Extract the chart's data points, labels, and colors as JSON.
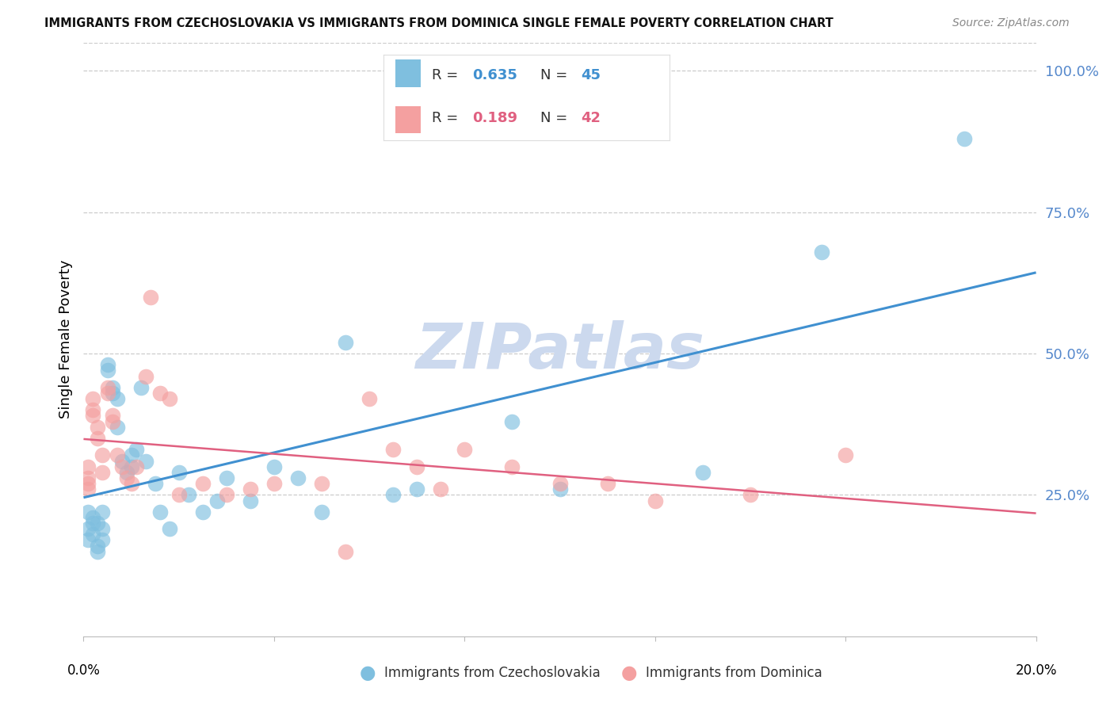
{
  "title": "IMMIGRANTS FROM CZECHOSLOVAKIA VS IMMIGRANTS FROM DOMINICA SINGLE FEMALE POVERTY CORRELATION CHART",
  "source": "Source: ZipAtlas.com",
  "ylabel": "Single Female Poverty",
  "xlim": [
    0.0,
    0.2
  ],
  "ylim": [
    0.0,
    1.05
  ],
  "yticks": [
    0.25,
    0.5,
    0.75,
    1.0
  ],
  "ytick_labels": [
    "25.0%",
    "50.0%",
    "75.0%",
    "100.0%"
  ],
  "xtick_positions": [
    0.0,
    0.04,
    0.08,
    0.12,
    0.16,
    0.2
  ],
  "xtick_labels_show": [
    "0.0%",
    "20.0%"
  ],
  "xtick_labels_pos": [
    0.0,
    0.2
  ],
  "legend_label1": "Immigrants from Czechoslovakia",
  "legend_label2": "Immigrants from Dominica",
  "R1": 0.635,
  "N1": 45,
  "R2": 0.189,
  "N2": 42,
  "color1": "#7fbfdf",
  "color2": "#f4a0a0",
  "line_color1": "#4090d0",
  "line_color2": "#e06080",
  "background_color": "#ffffff",
  "watermark": "ZIPatlas",
  "watermark_color": "#ccd9ee",
  "czech_x": [
    0.001,
    0.001,
    0.001,
    0.002,
    0.002,
    0.002,
    0.003,
    0.003,
    0.003,
    0.004,
    0.004,
    0.004,
    0.005,
    0.005,
    0.006,
    0.006,
    0.007,
    0.007,
    0.008,
    0.009,
    0.01,
    0.01,
    0.011,
    0.012,
    0.013,
    0.015,
    0.016,
    0.018,
    0.02,
    0.022,
    0.025,
    0.028,
    0.03,
    0.035,
    0.04,
    0.045,
    0.05,
    0.055,
    0.065,
    0.07,
    0.09,
    0.1,
    0.13,
    0.155,
    0.185
  ],
  "czech_y": [
    0.19,
    0.22,
    0.17,
    0.21,
    0.18,
    0.2,
    0.16,
    0.15,
    0.2,
    0.22,
    0.19,
    0.17,
    0.47,
    0.48,
    0.43,
    0.44,
    0.42,
    0.37,
    0.31,
    0.29,
    0.32,
    0.3,
    0.33,
    0.44,
    0.31,
    0.27,
    0.22,
    0.19,
    0.29,
    0.25,
    0.22,
    0.24,
    0.28,
    0.24,
    0.3,
    0.28,
    0.22,
    0.52,
    0.25,
    0.26,
    0.38,
    0.26,
    0.29,
    0.68,
    0.88
  ],
  "dominica_x": [
    0.001,
    0.001,
    0.001,
    0.001,
    0.002,
    0.002,
    0.002,
    0.003,
    0.003,
    0.004,
    0.004,
    0.005,
    0.005,
    0.006,
    0.006,
    0.007,
    0.008,
    0.009,
    0.01,
    0.011,
    0.013,
    0.014,
    0.016,
    0.018,
    0.02,
    0.025,
    0.03,
    0.035,
    0.04,
    0.05,
    0.055,
    0.06,
    0.065,
    0.07,
    0.075,
    0.08,
    0.09,
    0.1,
    0.11,
    0.12,
    0.14,
    0.16
  ],
  "dominica_y": [
    0.28,
    0.3,
    0.26,
    0.27,
    0.39,
    0.42,
    0.4,
    0.37,
    0.35,
    0.32,
    0.29,
    0.43,
    0.44,
    0.38,
    0.39,
    0.32,
    0.3,
    0.28,
    0.27,
    0.3,
    0.46,
    0.6,
    0.43,
    0.42,
    0.25,
    0.27,
    0.25,
    0.26,
    0.27,
    0.27,
    0.15,
    0.42,
    0.33,
    0.3,
    0.26,
    0.33,
    0.3,
    0.27,
    0.27,
    0.24,
    0.25,
    0.32
  ]
}
